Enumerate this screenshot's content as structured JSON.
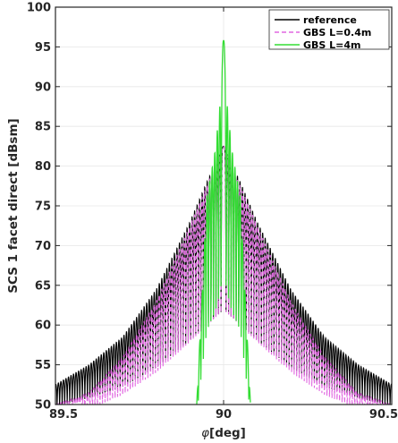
{
  "chart_data": {
    "type": "line",
    "title": "",
    "xlabel_symbol": "φ",
    "xlabel_unit": "[deg]",
    "ylabel": "SCS 1 facet direct [dBsm]",
    "xlim": [
      89.5,
      90.5
    ],
    "ylim": [
      50,
      100
    ],
    "xticks": [
      89.5,
      90,
      90.5
    ],
    "xtick_labels": [
      "89.5",
      "90",
      "90.5"
    ],
    "yticks": [
      50,
      55,
      60,
      65,
      70,
      75,
      80,
      85,
      90,
      95,
      100
    ],
    "ytick_labels": [
      "50",
      "55",
      "60",
      "65",
      "70",
      "75",
      "80",
      "85",
      "90",
      "95",
      "100"
    ],
    "grid": true,
    "legend_position": "top-right",
    "series": [
      {
        "name": "reference",
        "color": "#000000",
        "style": "solid",
        "peak": {
          "x": 90.0,
          "y": 82.5
        },
        "lobe_spacing_deg": 0.0075,
        "envelope": [
          {
            "x": 89.5,
            "y": 52.5
          },
          {
            "x": 89.6,
            "y": 55.0
          },
          {
            "x": 89.7,
            "y": 58.5
          },
          {
            "x": 89.8,
            "y": 64.5
          },
          {
            "x": 89.9,
            "y": 73.0
          },
          {
            "x": 89.95,
            "y": 78.0
          },
          {
            "x": 90.0,
            "y": 82.5
          },
          {
            "x": 90.05,
            "y": 78.0
          },
          {
            "x": 90.1,
            "y": 73.0
          },
          {
            "x": 90.2,
            "y": 64.5
          },
          {
            "x": 90.3,
            "y": 58.5
          },
          {
            "x": 90.4,
            "y": 55.0
          },
          {
            "x": 90.5,
            "y": 52.5
          }
        ]
      },
      {
        "name": "GBS L=0.4m",
        "color": "#e066e0",
        "style": "dashed",
        "peak": {
          "x": 90.0,
          "y": 82.5
        },
        "lobe_spacing_deg": 0.0075,
        "envelope": [
          {
            "x": 89.5,
            "y": 50.0
          },
          {
            "x": 89.6,
            "y": 51.5
          },
          {
            "x": 89.7,
            "y": 56.0
          },
          {
            "x": 89.8,
            "y": 63.0
          },
          {
            "x": 89.9,
            "y": 72.5
          },
          {
            "x": 89.95,
            "y": 77.5
          },
          {
            "x": 90.0,
            "y": 82.5
          },
          {
            "x": 90.05,
            "y": 77.5
          },
          {
            "x": 90.1,
            "y": 72.5
          },
          {
            "x": 90.2,
            "y": 63.0
          },
          {
            "x": 90.3,
            "y": 56.0
          },
          {
            "x": 90.4,
            "y": 51.5
          },
          {
            "x": 90.5,
            "y": 50.0
          }
        ]
      },
      {
        "name": "GBS L=4m",
        "color": "#33dd33",
        "style": "solid",
        "peak": {
          "x": 90.0,
          "y": 95.8
        },
        "lobe_spacing_deg": 0.0075,
        "envelope": [
          {
            "x": 89.92,
            "y": 50.0
          },
          {
            "x": 89.95,
            "y": 76.0
          },
          {
            "x": 89.975,
            "y": 82.0
          },
          {
            "x": 89.99,
            "y": 88.0
          },
          {
            "x": 90.0,
            "y": 95.8
          },
          {
            "x": 90.01,
            "y": 88.0
          },
          {
            "x": 90.025,
            "y": 82.0
          },
          {
            "x": 90.05,
            "y": 76.0
          },
          {
            "x": 90.08,
            "y": 50.0
          }
        ]
      }
    ]
  }
}
